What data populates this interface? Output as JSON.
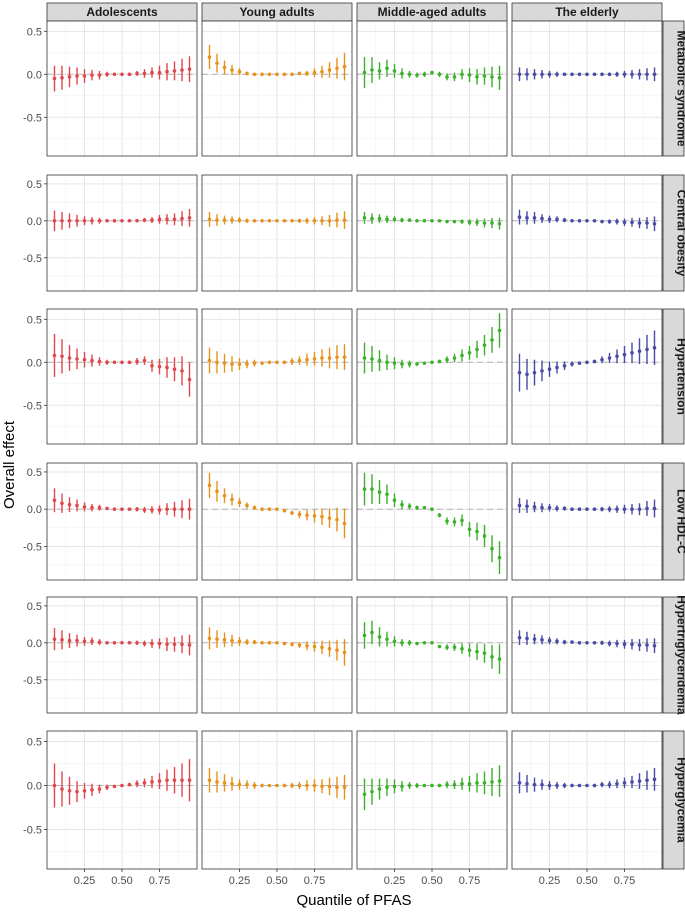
{
  "chart_data": {
    "type": "scatter",
    "facet": "grid",
    "xlabel": "Quantile of PFAS",
    "ylabel": "Overall effect",
    "columns": [
      "Adolescents",
      "Young adults",
      "Middle-aged adults",
      "The elderly"
    ],
    "rows": [
      "Metabolic syndrome",
      "Central obesity",
      "Hypertension",
      "Low HDL-C",
      "Hypertriglyceridemia",
      "Hyperglycemia"
    ],
    "x": [
      0.05,
      0.1,
      0.15,
      0.2,
      0.25,
      0.3,
      0.35,
      0.4,
      0.45,
      0.5,
      0.55,
      0.6,
      0.65,
      0.7,
      0.75,
      0.8,
      0.85,
      0.9,
      0.95
    ],
    "xlim": [
      0.0,
      1.0
    ],
    "ylim": [
      -0.95,
      0.62
    ],
    "xticks": [
      0.25,
      0.5,
      0.75
    ],
    "xtick_labels": [
      "0.25",
      "0.50",
      "0.75"
    ],
    "yticks": [
      -0.5,
      0.0,
      0.5
    ],
    "ytick_labels": [
      "-0.5",
      "0.0",
      "0.5"
    ],
    "reference_line": 0,
    "grid": true,
    "colors": {
      "Adolescents": "#e0474c",
      "Young adults": "#e6921a",
      "Middle-aged adults": "#3bb02a",
      "The elderly": "#4a4aa8"
    },
    "series": [
      {
        "column": "Adolescents",
        "row": "Metabolic syndrome",
        "values": [
          -0.05,
          -0.04,
          -0.03,
          -0.02,
          -0.02,
          -0.01,
          -0.01,
          0.0,
          0.0,
          0.0,
          0.0,
          0.01,
          0.01,
          0.02,
          0.02,
          0.03,
          0.04,
          0.05,
          0.06
        ],
        "errors": [
          0.15,
          0.14,
          0.12,
          0.1,
          0.08,
          0.06,
          0.05,
          0.03,
          0.02,
          0.0,
          0.02,
          0.03,
          0.05,
          0.06,
          0.08,
          0.1,
          0.11,
          0.13,
          0.15
        ]
      },
      {
        "column": "Young adults",
        "row": "Metabolic syndrome",
        "values": [
          0.2,
          0.13,
          0.08,
          0.05,
          0.03,
          0.01,
          0.0,
          0.0,
          0.0,
          0.0,
          0.0,
          0.0,
          0.01,
          0.01,
          0.02,
          0.03,
          0.05,
          0.07,
          0.09
        ],
        "errors": [
          0.14,
          0.11,
          0.08,
          0.06,
          0.04,
          0.02,
          0.01,
          0.0,
          0.0,
          0.0,
          0.0,
          0.01,
          0.02,
          0.03,
          0.05,
          0.07,
          0.09,
          0.12,
          0.16
        ]
      },
      {
        "column": "Middle-aged adults",
        "row": "Metabolic syndrome",
        "values": [
          0.02,
          0.05,
          0.04,
          0.07,
          0.04,
          0.01,
          0.0,
          -0.01,
          0.0,
          0.02,
          0.0,
          -0.03,
          -0.03,
          0.0,
          -0.01,
          -0.03,
          -0.02,
          -0.03,
          -0.04
        ],
        "errors": [
          0.18,
          0.15,
          0.1,
          0.1,
          0.08,
          0.06,
          0.04,
          0.03,
          0.03,
          0.02,
          0.03,
          0.04,
          0.05,
          0.06,
          0.08,
          0.09,
          0.1,
          0.12,
          0.14
        ]
      },
      {
        "column": "The elderly",
        "row": "Metabolic syndrome",
        "values": [
          0.0,
          0.0,
          0.0,
          0.0,
          0.0,
          0.0,
          0.0,
          0.0,
          0.0,
          0.0,
          0.0,
          0.0,
          0.0,
          0.0,
          0.0,
          0.0,
          0.0,
          0.0,
          0.0
        ],
        "errors": [
          0.08,
          0.07,
          0.06,
          0.05,
          0.04,
          0.03,
          0.02,
          0.02,
          0.01,
          0.0,
          0.01,
          0.02,
          0.02,
          0.03,
          0.04,
          0.05,
          0.06,
          0.07,
          0.08
        ]
      },
      {
        "column": "Adolescents",
        "row": "Central obesity",
        "values": [
          0.0,
          0.0,
          0.0,
          0.0,
          0.0,
          0.0,
          0.0,
          0.0,
          0.0,
          0.0,
          0.0,
          0.0,
          0.01,
          0.01,
          0.02,
          0.02,
          0.02,
          0.03,
          0.04
        ],
        "errors": [
          0.14,
          0.12,
          0.1,
          0.08,
          0.06,
          0.05,
          0.04,
          0.02,
          0.01,
          0.0,
          0.01,
          0.02,
          0.03,
          0.04,
          0.06,
          0.07,
          0.08,
          0.1,
          0.12
        ]
      },
      {
        "column": "Young adults",
        "row": "Central obesity",
        "values": [
          0.02,
          0.01,
          0.01,
          0.01,
          0.01,
          0.0,
          0.0,
          0.0,
          0.0,
          0.0,
          0.0,
          0.0,
          0.0,
          0.0,
          0.0,
          0.0,
          0.0,
          0.01,
          0.01
        ],
        "errors": [
          0.1,
          0.08,
          0.06,
          0.05,
          0.04,
          0.03,
          0.02,
          0.01,
          0.01,
          0.0,
          0.01,
          0.02,
          0.03,
          0.04,
          0.05,
          0.06,
          0.08,
          0.1,
          0.12
        ]
      },
      {
        "column": "Middle-aged adults",
        "row": "Central obesity",
        "values": [
          0.04,
          0.03,
          0.03,
          0.02,
          0.02,
          0.01,
          0.01,
          0.0,
          0.0,
          0.0,
          0.0,
          -0.01,
          -0.01,
          -0.01,
          -0.02,
          -0.02,
          -0.03,
          -0.03,
          -0.04
        ],
        "errors": [
          0.08,
          0.07,
          0.06,
          0.05,
          0.04,
          0.03,
          0.02,
          0.01,
          0.01,
          0.0,
          0.01,
          0.02,
          0.02,
          0.03,
          0.04,
          0.05,
          0.06,
          0.07,
          0.08
        ]
      },
      {
        "column": "The elderly",
        "row": "Central obesity",
        "values": [
          0.05,
          0.04,
          0.04,
          0.03,
          0.02,
          0.02,
          0.01,
          0.0,
          0.0,
          0.0,
          0.0,
          -0.01,
          -0.01,
          -0.01,
          -0.02,
          -0.02,
          -0.03,
          -0.03,
          -0.04
        ],
        "errors": [
          0.1,
          0.09,
          0.08,
          0.06,
          0.05,
          0.04,
          0.03,
          0.02,
          0.01,
          0.0,
          0.01,
          0.02,
          0.03,
          0.04,
          0.05,
          0.06,
          0.07,
          0.08,
          0.1
        ]
      },
      {
        "column": "Adolescents",
        "row": "Hypertension",
        "values": [
          0.08,
          0.07,
          0.05,
          0.04,
          0.03,
          0.02,
          0.01,
          0.0,
          0.0,
          0.0,
          0.0,
          0.01,
          0.02,
          -0.04,
          -0.05,
          -0.06,
          -0.08,
          -0.1,
          -0.2
        ],
        "errors": [
          0.25,
          0.2,
          0.15,
          0.12,
          0.09,
          0.07,
          0.05,
          0.03,
          0.01,
          0.0,
          0.02,
          0.04,
          0.05,
          0.07,
          0.09,
          0.12,
          0.14,
          0.17,
          0.2
        ]
      },
      {
        "column": "Young adults",
        "row": "Hypertension",
        "values": [
          0.02,
          0.0,
          -0.01,
          -0.02,
          -0.02,
          -0.02,
          -0.01,
          -0.01,
          0.0,
          0.0,
          0.0,
          0.01,
          0.02,
          0.03,
          0.04,
          0.05,
          0.05,
          0.06,
          0.06
        ],
        "errors": [
          0.15,
          0.13,
          0.11,
          0.09,
          0.07,
          0.05,
          0.04,
          0.02,
          0.01,
          0.0,
          0.02,
          0.04,
          0.05,
          0.07,
          0.08,
          0.1,
          0.12,
          0.14,
          0.15
        ]
      },
      {
        "column": "Middle-aged adults",
        "row": "Hypertension",
        "values": [
          0.05,
          0.04,
          0.02,
          0.0,
          -0.01,
          -0.02,
          -0.02,
          -0.02,
          -0.01,
          0.0,
          0.01,
          0.03,
          0.05,
          0.08,
          0.11,
          0.15,
          0.2,
          0.26,
          0.37
        ],
        "errors": [
          0.18,
          0.15,
          0.12,
          0.09,
          0.07,
          0.05,
          0.04,
          0.02,
          0.01,
          0.0,
          0.02,
          0.04,
          0.05,
          0.07,
          0.08,
          0.1,
          0.12,
          0.15,
          0.2
        ]
      },
      {
        "column": "The elderly",
        "row": "Hypertension",
        "values": [
          -0.12,
          -0.14,
          -0.12,
          -0.1,
          -0.08,
          -0.06,
          -0.04,
          -0.02,
          -0.01,
          0.0,
          0.01,
          0.03,
          0.05,
          0.07,
          0.09,
          0.11,
          0.13,
          0.15,
          0.17
        ],
        "errors": [
          0.22,
          0.18,
          0.15,
          0.12,
          0.09,
          0.07,
          0.05,
          0.03,
          0.01,
          0.0,
          0.02,
          0.04,
          0.06,
          0.08,
          0.1,
          0.12,
          0.15,
          0.17,
          0.2
        ]
      },
      {
        "column": "Adolescents",
        "row": "Low HDL-C",
        "values": [
          0.12,
          0.08,
          0.06,
          0.05,
          0.03,
          0.02,
          0.02,
          0.01,
          0.0,
          0.0,
          0.0,
          0.0,
          -0.01,
          -0.01,
          -0.01,
          0.0,
          0.0,
          0.0,
          0.0
        ],
        "errors": [
          0.16,
          0.13,
          0.1,
          0.08,
          0.06,
          0.05,
          0.04,
          0.02,
          0.01,
          0.0,
          0.02,
          0.03,
          0.04,
          0.05,
          0.06,
          0.08,
          0.1,
          0.12,
          0.14
        ]
      },
      {
        "column": "Young adults",
        "row": "Low HDL-C",
        "values": [
          0.32,
          0.24,
          0.18,
          0.13,
          0.09,
          0.05,
          0.02,
          0.0,
          0.0,
          0.0,
          -0.02,
          -0.05,
          -0.07,
          -0.08,
          -0.09,
          -0.1,
          -0.12,
          -0.14,
          -0.19
        ],
        "errors": [
          0.17,
          0.14,
          0.1,
          0.08,
          0.06,
          0.04,
          0.03,
          0.02,
          0.01,
          0.0,
          0.02,
          0.03,
          0.05,
          0.07,
          0.09,
          0.11,
          0.13,
          0.16,
          0.2
        ]
      },
      {
        "column": "Middle-aged adults",
        "row": "Low HDL-C",
        "values": [
          0.27,
          0.27,
          0.23,
          0.2,
          0.12,
          0.06,
          0.04,
          0.02,
          0.02,
          0.0,
          -0.08,
          -0.16,
          -0.17,
          -0.15,
          -0.27,
          -0.3,
          -0.36,
          -0.53,
          -0.65
        ],
        "errors": [
          0.22,
          0.2,
          0.16,
          0.13,
          0.09,
          0.06,
          0.04,
          0.03,
          0.02,
          0.0,
          0.03,
          0.05,
          0.06,
          0.08,
          0.1,
          0.12,
          0.15,
          0.18,
          0.22
        ]
      },
      {
        "column": "The elderly",
        "row": "Low HDL-C",
        "values": [
          0.05,
          0.04,
          0.03,
          0.02,
          0.02,
          0.01,
          0.01,
          0.0,
          0.0,
          0.0,
          0.0,
          0.0,
          0.0,
          0.0,
          0.0,
          0.0,
          0.0,
          0.01,
          0.01
        ],
        "errors": [
          0.1,
          0.09,
          0.07,
          0.06,
          0.05,
          0.04,
          0.03,
          0.02,
          0.01,
          0.0,
          0.02,
          0.03,
          0.04,
          0.05,
          0.06,
          0.07,
          0.08,
          0.1,
          0.12
        ]
      },
      {
        "column": "Adolescents",
        "row": "Hypertriglyceridemia",
        "values": [
          0.05,
          0.04,
          0.03,
          0.03,
          0.02,
          0.02,
          0.01,
          0.0,
          0.0,
          0.0,
          0.0,
          0.0,
          -0.01,
          -0.01,
          -0.01,
          -0.02,
          -0.02,
          -0.02,
          -0.03
        ],
        "errors": [
          0.15,
          0.13,
          0.1,
          0.08,
          0.06,
          0.05,
          0.04,
          0.02,
          0.01,
          0.0,
          0.02,
          0.03,
          0.04,
          0.06,
          0.07,
          0.09,
          0.1,
          0.12,
          0.14
        ]
      },
      {
        "column": "Young adults",
        "row": "Hypertriglyceridemia",
        "values": [
          0.06,
          0.05,
          0.04,
          0.03,
          0.02,
          0.01,
          0.01,
          0.0,
          0.0,
          0.0,
          -0.01,
          -0.02,
          -0.03,
          -0.04,
          -0.05,
          -0.06,
          -0.08,
          -0.1,
          -0.13
        ],
        "errors": [
          0.15,
          0.12,
          0.1,
          0.08,
          0.06,
          0.04,
          0.03,
          0.02,
          0.01,
          0.0,
          0.02,
          0.03,
          0.04,
          0.06,
          0.07,
          0.09,
          0.11,
          0.14,
          0.18
        ]
      },
      {
        "column": "Middle-aged adults",
        "row": "Hypertriglyceridemia",
        "values": [
          0.1,
          0.14,
          0.08,
          0.05,
          0.02,
          0.0,
          0.0,
          -0.01,
          0.0,
          0.0,
          -0.05,
          -0.06,
          -0.06,
          -0.08,
          -0.1,
          -0.12,
          -0.14,
          -0.19,
          -0.22
        ],
        "errors": [
          0.18,
          0.16,
          0.13,
          0.1,
          0.07,
          0.05,
          0.04,
          0.02,
          0.01,
          0.0,
          0.02,
          0.04,
          0.05,
          0.07,
          0.09,
          0.11,
          0.13,
          0.16,
          0.2
        ]
      },
      {
        "column": "The elderly",
        "row": "Hypertriglyceridemia",
        "values": [
          0.07,
          0.06,
          0.05,
          0.04,
          0.03,
          0.02,
          0.01,
          0.01,
          0.0,
          0.0,
          0.0,
          0.0,
          -0.01,
          -0.01,
          -0.02,
          -0.02,
          -0.03,
          -0.03,
          -0.04
        ],
        "errors": [
          0.1,
          0.09,
          0.07,
          0.06,
          0.05,
          0.04,
          0.03,
          0.02,
          0.01,
          0.0,
          0.02,
          0.03,
          0.04,
          0.05,
          0.06,
          0.07,
          0.08,
          0.09,
          0.1
        ]
      },
      {
        "column": "Adolescents",
        "row": "Hyperglycemia",
        "values": [
          0.0,
          -0.04,
          -0.06,
          -0.07,
          -0.06,
          -0.05,
          -0.04,
          -0.02,
          -0.01,
          0.0,
          0.01,
          0.02,
          0.03,
          0.04,
          0.05,
          0.06,
          0.06,
          0.06,
          0.06
        ],
        "errors": [
          0.25,
          0.2,
          0.16,
          0.12,
          0.09,
          0.07,
          0.05,
          0.03,
          0.01,
          0.0,
          0.02,
          0.04,
          0.05,
          0.07,
          0.09,
          0.12,
          0.15,
          0.19,
          0.24
        ]
      },
      {
        "column": "Young adults",
        "row": "Hyperglycemia",
        "values": [
          0.06,
          0.04,
          0.03,
          0.02,
          0.01,
          0.01,
          0.0,
          0.0,
          0.0,
          0.0,
          0.0,
          0.0,
          0.0,
          0.0,
          0.0,
          -0.01,
          -0.01,
          -0.02,
          -0.02
        ],
        "errors": [
          0.14,
          0.12,
          0.1,
          0.08,
          0.06,
          0.05,
          0.04,
          0.02,
          0.01,
          0.0,
          0.02,
          0.03,
          0.04,
          0.06,
          0.07,
          0.08,
          0.1,
          0.12,
          0.14
        ]
      },
      {
        "column": "Middle-aged adults",
        "row": "Hyperglycemia",
        "values": [
          -0.1,
          -0.07,
          -0.04,
          -0.02,
          -0.01,
          -0.01,
          0.0,
          0.0,
          0.0,
          0.0,
          0.0,
          0.01,
          0.01,
          0.02,
          0.02,
          0.03,
          0.03,
          0.04,
          0.05
        ],
        "errors": [
          0.18,
          0.15,
          0.12,
          0.1,
          0.08,
          0.06,
          0.04,
          0.03,
          0.01,
          0.0,
          0.02,
          0.04,
          0.05,
          0.07,
          0.09,
          0.11,
          0.13,
          0.16,
          0.18
        ]
      },
      {
        "column": "The elderly",
        "row": "Hyperglycemia",
        "values": [
          0.03,
          0.02,
          0.01,
          0.01,
          0.0,
          0.0,
          0.0,
          0.0,
          0.0,
          0.0,
          0.0,
          0.01,
          0.01,
          0.02,
          0.03,
          0.04,
          0.05,
          0.06,
          0.07
        ],
        "errors": [
          0.12,
          0.1,
          0.08,
          0.06,
          0.05,
          0.04,
          0.03,
          0.02,
          0.01,
          0.0,
          0.02,
          0.03,
          0.04,
          0.05,
          0.06,
          0.07,
          0.09,
          0.11,
          0.13
        ]
      }
    ]
  }
}
